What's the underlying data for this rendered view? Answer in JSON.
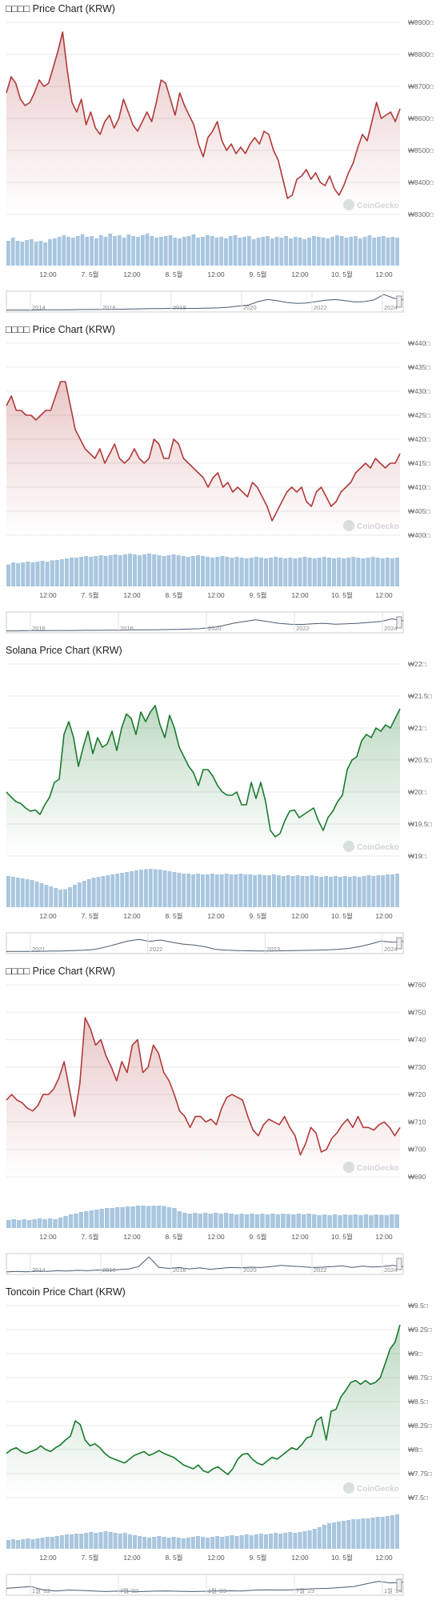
{
  "watermark": "CoinGecko",
  "colors": {
    "down": "#b03a3a",
    "up": "#1a7a2e",
    "volume": "#a9c6de",
    "grid": "#e8e8e8"
  },
  "x_ticks": [
    "12:00",
    "7. 5월",
    "12:00",
    "8. 5월",
    "12:00",
    "9. 5월",
    "12:00",
    "10. 5월",
    "12:00"
  ],
  "panels": [
    {
      "title": "□□□□ Price Chart (KRW)",
      "chart_data": {
        "type": "line",
        "title": "□□□□ Price Chart (KRW)",
        "color": "down",
        "yticks": [
          "₩8900□",
          "₩8800□",
          "₩8700□",
          "₩8600□",
          "₩8500□",
          "₩8400□",
          "₩8300□"
        ],
        "ylim": [
          8300,
          8900
        ],
        "values": [
          8680,
          8730,
          8710,
          8660,
          8640,
          8650,
          8680,
          8720,
          8700,
          8710,
          8760,
          8810,
          8870,
          8750,
          8650,
          8620,
          8660,
          8580,
          8620,
          8570,
          8550,
          8590,
          8610,
          8570,
          8600,
          8660,
          8620,
          8580,
          8560,
          8590,
          8620,
          8590,
          8650,
          8720,
          8710,
          8660,
          8610,
          8680,
          8640,
          8610,
          8580,
          8520,
          8480,
          8540,
          8560,
          8590,
          8530,
          8500,
          8520,
          8490,
          8510,
          8490,
          8520,
          8540,
          8520,
          8560,
          8550,
          8500,
          8470,
          8410,
          8350,
          8360,
          8410,
          8420,
          8440,
          8410,
          8430,
          8400,
          8390,
          8420,
          8380,
          8360,
          8390,
          8430,
          8460,
          8510,
          8550,
          8530,
          8590,
          8650,
          8600,
          8610,
          8620,
          8590,
          8630
        ],
        "volume": [
          0.62,
          0.7,
          0.62,
          0.6,
          0.64,
          0.66,
          0.6,
          0.62,
          0.58,
          0.66,
          0.68,
          0.72,
          0.76,
          0.72,
          0.7,
          0.74,
          0.78,
          0.72,
          0.74,
          0.68,
          0.76,
          0.72,
          0.8,
          0.74,
          0.76,
          0.7,
          0.78,
          0.74,
          0.72,
          0.76,
          0.8,
          0.74,
          0.7,
          0.72,
          0.74,
          0.76,
          0.7,
          0.68,
          0.72,
          0.74,
          0.78,
          0.7,
          0.72,
          0.76,
          0.74,
          0.7,
          0.72,
          0.68,
          0.74,
          0.76,
          0.7,
          0.72,
          0.74,
          0.66,
          0.7,
          0.72,
          0.74,
          0.68,
          0.72,
          0.7,
          0.74,
          0.68,
          0.72,
          0.7,
          0.66,
          0.7,
          0.74,
          0.72,
          0.7,
          0.68,
          0.72,
          0.76,
          0.74,
          0.7,
          0.72,
          0.74,
          0.68,
          0.72,
          0.76,
          0.7,
          0.72,
          0.74,
          0.7,
          0.72,
          0.7
        ],
        "nav_labels": [
          "2014",
          "2016",
          "2018",
          "2020",
          "2022",
          "2024"
        ],
        "nav_line": [
          0.02,
          0.02,
          0.02,
          0.02,
          0.03,
          0.03,
          0.03,
          0.04,
          0.05,
          0.05,
          0.06,
          0.06,
          0.07,
          0.08,
          0.09,
          0.1,
          0.1,
          0.12,
          0.12,
          0.11,
          0.12,
          0.13,
          0.15,
          0.18,
          0.25,
          0.3,
          0.5,
          0.62,
          0.55,
          0.45,
          0.4,
          0.42,
          0.5,
          0.58,
          0.62,
          0.55,
          0.48,
          0.5,
          0.6,
          0.9,
          0.7,
          0.6
        ]
      }
    },
    {
      "title": "□□□□ Price Chart (KRW)",
      "chart_data": {
        "type": "line",
        "title": "□□□□ Price Chart (KRW)",
        "color": "down",
        "yticks": [
          "₩440□",
          "₩435□",
          "₩430□",
          "₩425□",
          "₩420□",
          "₩415□",
          "₩410□",
          "₩405□",
          "₩400□"
        ],
        "ylim": [
          400,
          440
        ],
        "values": [
          427,
          429,
          426,
          426,
          425,
          425,
          424,
          425,
          426,
          426,
          429,
          432,
          432,
          427,
          422,
          420,
          418,
          417,
          416,
          418,
          415,
          417,
          419,
          416,
          415,
          416,
          418,
          416,
          415,
          416,
          420,
          419,
          416,
          416,
          420,
          419,
          416,
          415,
          414,
          413,
          412,
          410,
          412,
          413,
          410,
          411,
          409,
          410,
          409,
          408,
          411,
          410,
          408,
          406,
          403,
          405,
          407,
          409,
          410,
          409,
          410,
          407,
          406,
          409,
          410,
          408,
          406,
          407,
          409,
          410,
          411,
          413,
          414,
          415,
          414,
          416,
          415,
          414,
          415,
          415,
          417
        ],
        "volume": [
          0.55,
          0.6,
          0.58,
          0.6,
          0.62,
          0.6,
          0.62,
          0.64,
          0.62,
          0.65,
          0.66,
          0.68,
          0.7,
          0.72,
          0.72,
          0.74,
          0.76,
          0.74,
          0.76,
          0.78,
          0.76,
          0.78,
          0.8,
          0.78,
          0.8,
          0.82,
          0.8,
          0.78,
          0.8,
          0.82,
          0.8,
          0.78,
          0.76,
          0.78,
          0.8,
          0.78,
          0.76,
          0.74,
          0.76,
          0.78,
          0.76,
          0.74,
          0.72,
          0.74,
          0.76,
          0.74,
          0.72,
          0.74,
          0.72,
          0.7,
          0.72,
          0.74,
          0.72,
          0.7,
          0.72,
          0.74,
          0.72,
          0.7,
          0.72,
          0.7,
          0.72,
          0.74,
          0.72,
          0.7,
          0.72,
          0.74,
          0.72,
          0.7,
          0.72,
          0.7,
          0.72,
          0.74,
          0.72,
          0.7,
          0.72,
          0.74,
          0.72,
          0.7,
          0.72,
          0.7,
          0.72
        ],
        "nav_labels": [
          "2016",
          "2018",
          "2020",
          "2022",
          "2024"
        ],
        "nav_line": [
          0.02,
          0.02,
          0.03,
          0.03,
          0.03,
          0.04,
          0.04,
          0.05,
          0.05,
          0.06,
          0.06,
          0.07,
          0.08,
          0.08,
          0.09,
          0.1,
          0.12,
          0.14,
          0.2,
          0.3,
          0.45,
          0.55,
          0.65,
          0.55,
          0.45,
          0.4,
          0.38,
          0.42,
          0.45,
          0.4,
          0.42,
          0.45,
          0.5,
          0.55,
          0.7,
          0.6
        ]
      }
    },
    {
      "title": "Solana Price Chart (KRW)",
      "chart_data": {
        "type": "line",
        "title": "Solana Price Chart (KRW)",
        "color": "up",
        "yticks": [
          "₩22□",
          "₩21.5□",
          "₩21□",
          "₩20.5□",
          "₩20□",
          "₩19.5□",
          "₩19□"
        ],
        "ylim": [
          19,
          22
        ],
        "values": [
          20.0,
          19.92,
          19.85,
          19.82,
          19.75,
          19.7,
          19.72,
          19.65,
          19.8,
          19.92,
          20.15,
          20.2,
          20.9,
          21.1,
          20.85,
          20.4,
          20.7,
          20.95,
          20.6,
          20.85,
          20.7,
          20.75,
          20.95,
          20.65,
          21.0,
          21.22,
          21.15,
          20.9,
          21.25,
          21.1,
          21.25,
          21.35,
          21.05,
          20.85,
          21.2,
          21.0,
          20.7,
          20.55,
          20.4,
          20.3,
          20.1,
          20.35,
          20.35,
          20.25,
          20.1,
          20.0,
          19.95,
          19.95,
          20.0,
          19.8,
          19.8,
          20.15,
          19.9,
          20.15,
          19.85,
          19.4,
          19.3,
          19.35,
          19.55,
          19.7,
          19.72,
          19.6,
          19.65,
          19.7,
          19.75,
          19.55,
          19.4,
          19.6,
          19.7,
          19.85,
          19.95,
          20.35,
          20.5,
          20.55,
          20.8,
          20.9,
          20.85,
          21.0,
          20.95,
          21.05,
          21.0,
          21.15,
          21.3
        ],
        "volume": [
          0.78,
          0.76,
          0.74,
          0.72,
          0.7,
          0.68,
          0.64,
          0.6,
          0.56,
          0.52,
          0.48,
          0.44,
          0.45,
          0.5,
          0.56,
          0.62,
          0.66,
          0.7,
          0.74,
          0.76,
          0.78,
          0.8,
          0.82,
          0.84,
          0.86,
          0.88,
          0.9,
          0.92,
          0.94,
          0.95,
          0.96,
          0.95,
          0.94,
          0.92,
          0.9,
          0.88,
          0.86,
          0.84,
          0.84,
          0.82,
          0.84,
          0.82,
          0.82,
          0.84,
          0.82,
          0.82,
          0.84,
          0.82,
          0.82,
          0.84,
          0.82,
          0.82,
          0.8,
          0.82,
          0.8,
          0.8,
          0.82,
          0.8,
          0.78,
          0.8,
          0.78,
          0.8,
          0.78,
          0.78,
          0.8,
          0.78,
          0.76,
          0.78,
          0.76,
          0.78,
          0.76,
          0.78,
          0.76,
          0.78,
          0.76,
          0.78,
          0.8,
          0.78,
          0.8,
          0.8,
          0.82,
          0.82,
          0.84
        ],
        "nav_labels": [
          "2021",
          "2022",
          "2023",
          "2024"
        ],
        "nav_line": [
          0.03,
          0.03,
          0.03,
          0.04,
          0.05,
          0.06,
          0.08,
          0.1,
          0.15,
          0.28,
          0.45,
          0.62,
          0.72,
          0.6,
          0.68,
          0.55,
          0.45,
          0.4,
          0.3,
          0.15,
          0.1,
          0.08,
          0.07,
          0.06,
          0.06,
          0.07,
          0.08,
          0.09,
          0.1,
          0.12,
          0.15,
          0.2,
          0.3,
          0.45,
          0.62,
          0.55,
          0.6
        ]
      }
    },
    {
      "title": "□□□□ Price Chart (KRW)",
      "chart_data": {
        "type": "line",
        "title": "□□□□ Price Chart (KRW)",
        "color": "down",
        "yticks": [
          "₩760",
          "₩750",
          "₩740",
          "₩730",
          "₩720",
          "₩710",
          "₩700",
          "₩690"
        ],
        "ylim": [
          690,
          760
        ],
        "values": [
          718,
          720,
          718,
          717,
          715,
          714,
          716,
          720,
          720,
          722,
          726,
          732,
          722,
          712,
          724,
          748,
          744,
          738,
          740,
          734,
          730,
          725,
          732,
          728,
          738,
          740,
          728,
          730,
          738,
          735,
          728,
          725,
          720,
          714,
          712,
          708,
          712,
          712,
          710,
          711,
          709,
          715,
          719,
          720,
          719,
          718,
          712,
          707,
          705,
          709,
          711,
          710,
          709,
          712,
          708,
          705,
          698,
          702,
          708,
          706,
          699,
          700,
          704,
          706,
          709,
          711,
          708,
          712,
          708,
          708,
          707,
          709,
          710,
          708,
          705,
          708
        ],
        "volume": [
          0.2,
          0.22,
          0.2,
          0.22,
          0.2,
          0.22,
          0.24,
          0.22,
          0.24,
          0.22,
          0.26,
          0.3,
          0.34,
          0.36,
          0.4,
          0.42,
          0.44,
          0.46,
          0.48,
          0.5,
          0.5,
          0.52,
          0.52,
          0.54,
          0.54,
          0.56,
          0.56,
          0.55,
          0.56,
          0.56,
          0.55,
          0.52,
          0.5,
          0.42,
          0.38,
          0.36,
          0.38,
          0.36,
          0.38,
          0.36,
          0.38,
          0.36,
          0.38,
          0.36,
          0.34,
          0.36,
          0.34,
          0.36,
          0.34,
          0.36,
          0.34,
          0.36,
          0.34,
          0.36,
          0.35,
          0.34,
          0.36,
          0.34,
          0.36,
          0.34,
          0.32,
          0.34,
          0.32,
          0.34,
          0.32,
          0.34,
          0.33,
          0.34,
          0.32,
          0.34,
          0.32,
          0.34,
          0.33,
          0.32,
          0.34,
          0.34
        ],
        "nav_labels": [
          "2014",
          "2016",
          "2018",
          "2020",
          "2022",
          "2024"
        ],
        "nav_line": [
          0.05,
          0.08,
          0.06,
          0.1,
          0.08,
          0.12,
          0.1,
          0.14,
          0.12,
          0.16,
          0.14,
          0.18,
          0.22,
          0.35,
          0.9,
          0.3,
          0.25,
          0.3,
          0.22,
          0.28,
          0.2,
          0.25,
          0.3,
          0.28,
          0.32,
          0.3,
          0.35,
          0.42,
          0.38,
          0.35,
          0.3,
          0.32,
          0.35,
          0.4,
          0.3,
          0.38,
          0.33,
          0.36,
          0.42,
          0.35
        ]
      }
    },
    {
      "title": "Toncoin Price Chart (KRW)",
      "chart_data": {
        "type": "line",
        "title": "Toncoin Price Chart (KRW)",
        "color": "up",
        "yticks": [
          "₩9.5□",
          "₩9.25□",
          "₩9□",
          "₩8.75□",
          "₩8.5□",
          "₩8.25□",
          "₩8□",
          "₩7.75□",
          "₩7.5□"
        ],
        "ylim": [
          7.5,
          9.5
        ],
        "values": [
          7.96,
          8.0,
          8.02,
          7.98,
          7.96,
          7.98,
          8.0,
          8.04,
          8.0,
          7.98,
          8.02,
          8.05,
          8.1,
          8.14,
          8.3,
          8.26,
          8.1,
          8.04,
          8.06,
          8.02,
          7.96,
          7.92,
          7.9,
          7.88,
          7.86,
          7.9,
          7.94,
          7.96,
          7.98,
          7.94,
          7.96,
          7.99,
          7.96,
          7.94,
          7.92,
          7.88,
          7.84,
          7.82,
          7.8,
          7.84,
          7.78,
          7.76,
          7.8,
          7.82,
          7.78,
          7.74,
          7.8,
          7.9,
          7.95,
          7.96,
          7.9,
          7.86,
          7.84,
          7.88,
          7.92,
          7.9,
          7.94,
          7.98,
          8.02,
          8.0,
          8.05,
          8.12,
          8.14,
          8.3,
          8.34,
          8.1,
          8.4,
          8.42,
          8.55,
          8.62,
          8.7,
          8.72,
          8.68,
          8.72,
          8.68,
          8.7,
          8.75,
          8.9,
          9.05,
          9.12,
          9.3
        ],
        "volume": [
          0.22,
          0.24,
          0.22,
          0.24,
          0.26,
          0.24,
          0.26,
          0.28,
          0.3,
          0.3,
          0.32,
          0.34,
          0.36,
          0.36,
          0.38,
          0.38,
          0.4,
          0.42,
          0.4,
          0.42,
          0.44,
          0.42,
          0.4,
          0.38,
          0.4,
          0.36,
          0.34,
          0.32,
          0.3,
          0.28,
          0.3,
          0.32,
          0.3,
          0.28,
          0.3,
          0.28,
          0.26,
          0.28,
          0.3,
          0.32,
          0.3,
          0.28,
          0.3,
          0.32,
          0.3,
          0.32,
          0.34,
          0.32,
          0.34,
          0.36,
          0.34,
          0.36,
          0.38,
          0.36,
          0.38,
          0.4,
          0.38,
          0.4,
          0.42,
          0.4,
          0.42,
          0.44,
          0.46,
          0.5,
          0.54,
          0.6,
          0.64,
          0.66,
          0.68,
          0.7,
          0.72,
          0.74,
          0.74,
          0.76,
          0.76,
          0.78,
          0.8,
          0.8,
          0.82,
          0.84,
          0.86
        ],
        "nav_labels": [
          "1월 '22",
          "7월 '22",
          "1월 '23",
          "7월 '23",
          "1월 '24"
        ],
        "nav_line": [
          0.3,
          0.35,
          0.4,
          0.2,
          0.15,
          0.2,
          0.18,
          0.15,
          0.12,
          0.14,
          0.13,
          0.12,
          0.14,
          0.15,
          0.13,
          0.12,
          0.13,
          0.15,
          0.16,
          0.15,
          0.2,
          0.22,
          0.2,
          0.22,
          0.25,
          0.28,
          0.3,
          0.35,
          0.4,
          0.55,
          0.7,
          0.6,
          0.65
        ]
      }
    }
  ]
}
